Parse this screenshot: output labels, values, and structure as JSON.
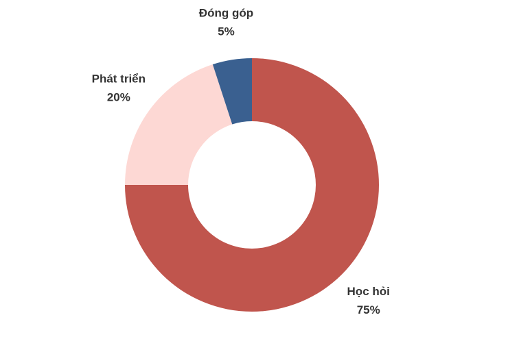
{
  "chart_data": {
    "type": "donut",
    "categories": [
      "Học hỏi",
      "Phát triển",
      "Đóng góp"
    ],
    "values": [
      75,
      20,
      5
    ],
    "value_labels": [
      "75%",
      "20%",
      "5%"
    ],
    "colors": [
      "#c0554d",
      "#fdd8d4",
      "#3a6090"
    ]
  }
}
